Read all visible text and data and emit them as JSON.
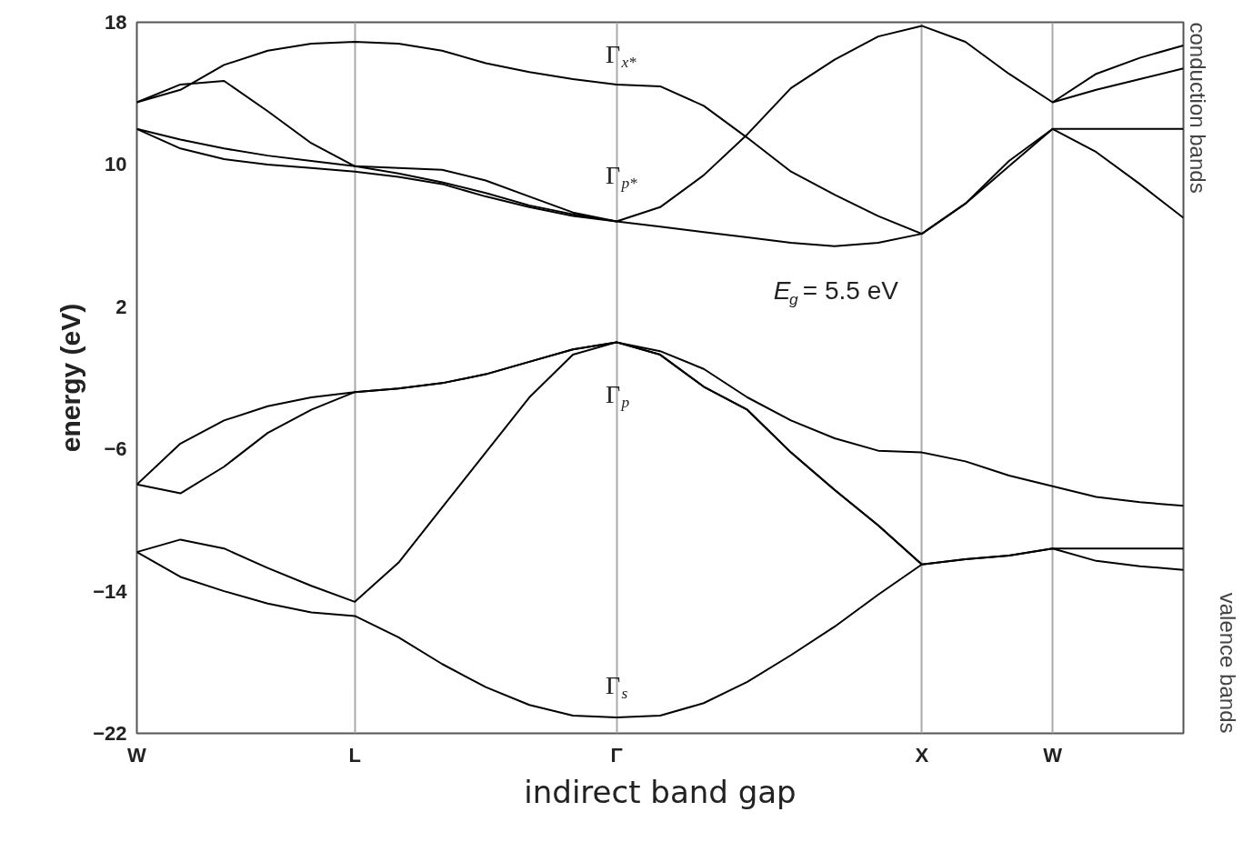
{
  "chart_data": {
    "type": "line",
    "xlabel": "indirect band gap",
    "ylabel": "energy (eV)",
    "categories": [
      "W",
      null,
      null,
      null,
      null,
      "L",
      null,
      null,
      null,
      null,
      null,
      "Γ",
      null,
      null,
      null,
      null,
      null,
      null,
      "X",
      null,
      null,
      "W",
      null,
      null,
      null
    ],
    "ylim": [
      -22,
      18
    ],
    "yticks": [
      -22,
      -14,
      -6,
      2,
      10,
      18
    ],
    "grid": "x",
    "series": [
      {
        "color": "#000000",
        "values": [
          13.5,
          14.2,
          15.6,
          16.4,
          16.8,
          16.9,
          16.8,
          16.4,
          15.7,
          15.2,
          14.8,
          14.5,
          14.4,
          13.3,
          11.5,
          9.6,
          8.3,
          7.1,
          6.1,
          7.8,
          9.9,
          12.0,
          10.7,
          8.9,
          7.0
        ]
      },
      {
        "color": "#000000",
        "values": [
          13.5,
          14.5,
          14.7,
          13.0,
          11.2,
          9.9,
          9.8,
          9.7,
          9.1,
          8.2,
          7.3,
          6.8,
          7.6,
          9.4,
          11.7,
          14.3,
          15.9,
          17.2,
          17.8,
          16.9,
          15.1,
          13.5,
          15.1,
          16.0,
          16.7
        ]
      },
      {
        "color": "#000000",
        "values": [
          12.0,
          11.4,
          10.9,
          10.5,
          10.2,
          9.9,
          9.5,
          9.0,
          8.4,
          7.7,
          7.2,
          6.8,
          6.5,
          6.2,
          5.9,
          5.6,
          5.4,
          5.6,
          6.1,
          7.8,
          10.2,
          12.0,
          12.0,
          12.0,
          12.0
        ]
      },
      {
        "color": "#000000",
        "values": [
          12.0,
          10.9,
          10.3,
          10.0,
          9.8,
          9.6,
          9.3,
          8.9,
          8.2,
          7.6,
          7.1,
          6.8,
          null,
          null,
          null,
          null,
          null,
          null,
          null,
          null,
          null,
          13.5,
          14.2,
          14.8,
          15.4
        ]
      },
      {
        "color": "#000000",
        "values": [
          -8.0,
          -5.7,
          -4.4,
          -3.6,
          -3.1,
          -2.8,
          -2.6,
          -2.3,
          -1.8,
          -1.1,
          -0.4,
          0.0,
          -0.5,
          -1.5,
          -3.1,
          -4.4,
          -5.4,
          -6.1,
          -6.2,
          -6.7,
          -7.5,
          -8.1,
          -8.7,
          -9.0,
          -9.2
        ]
      },
      {
        "color": "#000000",
        "values": [
          -8.0,
          -8.5,
          -7.0,
          -5.1,
          -3.8,
          -2.8,
          -2.6,
          -2.3,
          -1.8,
          -1.1,
          -0.4,
          0.0,
          -0.7,
          -2.5,
          -3.8,
          -6.2,
          -8.3,
          -10.3,
          -12.5,
          -12.2,
          -12.0,
          -11.6,
          -12.3,
          -12.6,
          -12.8
        ]
      },
      {
        "color": "#000000",
        "values": [
          -11.8,
          -11.1,
          -11.6,
          -12.7,
          -13.7,
          -14.6,
          -12.4,
          -9.3,
          -6.2,
          -3.1,
          -0.7,
          0.0,
          -0.7,
          -2.5,
          -3.8,
          -6.2,
          -8.3,
          -10.3,
          -12.5,
          -12.2,
          -12.0,
          -11.6,
          -11.6,
          -11.6,
          -11.6
        ]
      },
      {
        "color": "#000000",
        "values": [
          -11.8,
          -13.2,
          -14.0,
          -14.7,
          -15.2,
          -15.4,
          -16.6,
          -18.1,
          -19.4,
          -20.4,
          -21.0,
          -21.1,
          -21.0,
          -20.3,
          -19.1,
          -17.6,
          -16.0,
          -14.2,
          -12.5,
          null,
          null,
          null,
          null,
          null,
          null
        ]
      }
    ],
    "annotations": [
      "Γ$_{x*}$",
      "Γ$_{p*}$",
      "Γ$_{p}$",
      "Γ$_{s}$",
      "E$_{g}$ = 5.5 eV",
      "conduction bands",
      "valence bands"
    ]
  }
}
